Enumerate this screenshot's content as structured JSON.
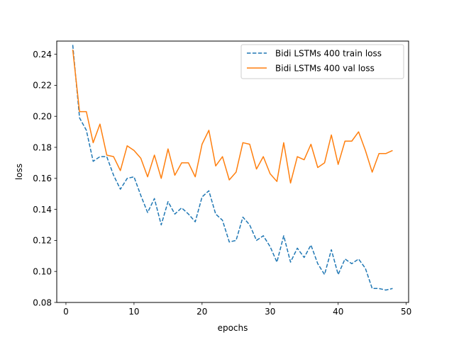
{
  "chart_data": {
    "type": "line",
    "title": "",
    "xlabel": "epochs",
    "ylabel": "loss",
    "xlim": [
      -1.35,
      50.35
    ],
    "ylim": [
      0.08,
      0.2485
    ],
    "xticks": [
      0,
      10,
      20,
      30,
      40,
      50
    ],
    "yticks": [
      0.08,
      0.1,
      0.12,
      0.14,
      0.16,
      0.18,
      0.2,
      0.22,
      0.24
    ],
    "grid": false,
    "legend_position": "top-right",
    "x": [
      1,
      2,
      3,
      4,
      5,
      6,
      7,
      8,
      9,
      10,
      11,
      12,
      13,
      14,
      15,
      16,
      17,
      18,
      19,
      20,
      21,
      22,
      23,
      24,
      25,
      26,
      27,
      28,
      29,
      30,
      31,
      32,
      33,
      34,
      35,
      36,
      37,
      38,
      39,
      40,
      41,
      42,
      43,
      44,
      45,
      46,
      47,
      48
    ],
    "series": [
      {
        "name": "Bidi LSTMs 400 train loss",
        "color": "#1f77b4",
        "style": "dashed",
        "values": [
          0.246,
          0.199,
          0.191,
          0.171,
          0.174,
          0.174,
          0.162,
          0.153,
          0.16,
          0.161,
          0.149,
          0.138,
          0.147,
          0.13,
          0.145,
          0.137,
          0.141,
          0.137,
          0.132,
          0.148,
          0.152,
          0.137,
          0.133,
          0.119,
          0.12,
          0.135,
          0.13,
          0.12,
          0.123,
          0.116,
          0.106,
          0.123,
          0.106,
          0.115,
          0.109,
          0.117,
          0.105,
          0.098,
          0.114,
          0.098,
          0.108,
          0.105,
          0.108,
          0.102,
          0.089,
          0.089,
          0.088,
          0.089
        ]
      },
      {
        "name": "Bidi LSTMs 400 val loss",
        "color": "#ff7f0e",
        "style": "solid",
        "values": [
          0.243,
          0.203,
          0.203,
          0.183,
          0.195,
          0.175,
          0.174,
          0.165,
          0.181,
          0.178,
          0.173,
          0.161,
          0.175,
          0.16,
          0.179,
          0.162,
          0.17,
          0.17,
          0.161,
          0.182,
          0.191,
          0.168,
          0.174,
          0.159,
          0.164,
          0.183,
          0.182,
          0.166,
          0.174,
          0.163,
          0.158,
          0.183,
          0.157,
          0.174,
          0.172,
          0.182,
          0.167,
          0.17,
          0.188,
          0.169,
          0.184,
          0.184,
          0.19,
          0.178,
          0.164,
          0.176,
          0.176,
          0.178
        ]
      }
    ]
  }
}
